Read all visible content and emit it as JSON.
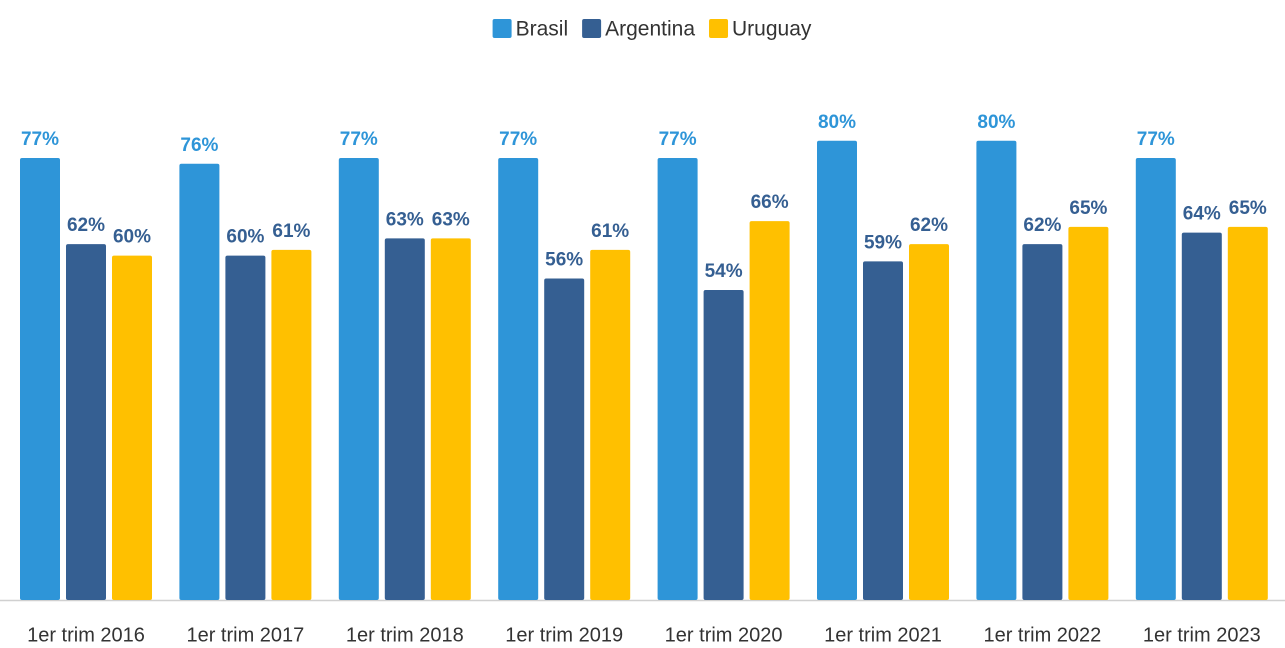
{
  "chart_data": {
    "type": "bar",
    "categories": [
      "1er trim 2016",
      "1er trim 2017",
      "1er trim 2018",
      "1er trim 2019",
      "1er trim 2020",
      "1er trim 2021",
      "1er trim 2022",
      "1er trim 2023"
    ],
    "series": [
      {
        "name": "Brasil",
        "color": "#2e95d8",
        "values": [
          77,
          76,
          77,
          77,
          77,
          80,
          80,
          77
        ],
        "value_labels": [
          "77%",
          "76%",
          "77%",
          "77%",
          "77%",
          "80%",
          "80%",
          "77%"
        ]
      },
      {
        "name": "Argentina",
        "color": "#355f92",
        "values": [
          62,
          60,
          63,
          56,
          54,
          59,
          62,
          64
        ],
        "value_labels": [
          "62%",
          "60%",
          "63%",
          "56%",
          "54%",
          "59%",
          "62%",
          "64%"
        ]
      },
      {
        "name": "Uruguay",
        "color": "#ffc000",
        "values": [
          60,
          61,
          63,
          61,
          66,
          62,
          65,
          65
        ],
        "value_labels": [
          "60%",
          "61%",
          "63%",
          "61%",
          "66%",
          "62%",
          "65%",
          "65%"
        ]
      }
    ],
    "legend": "top"
  }
}
